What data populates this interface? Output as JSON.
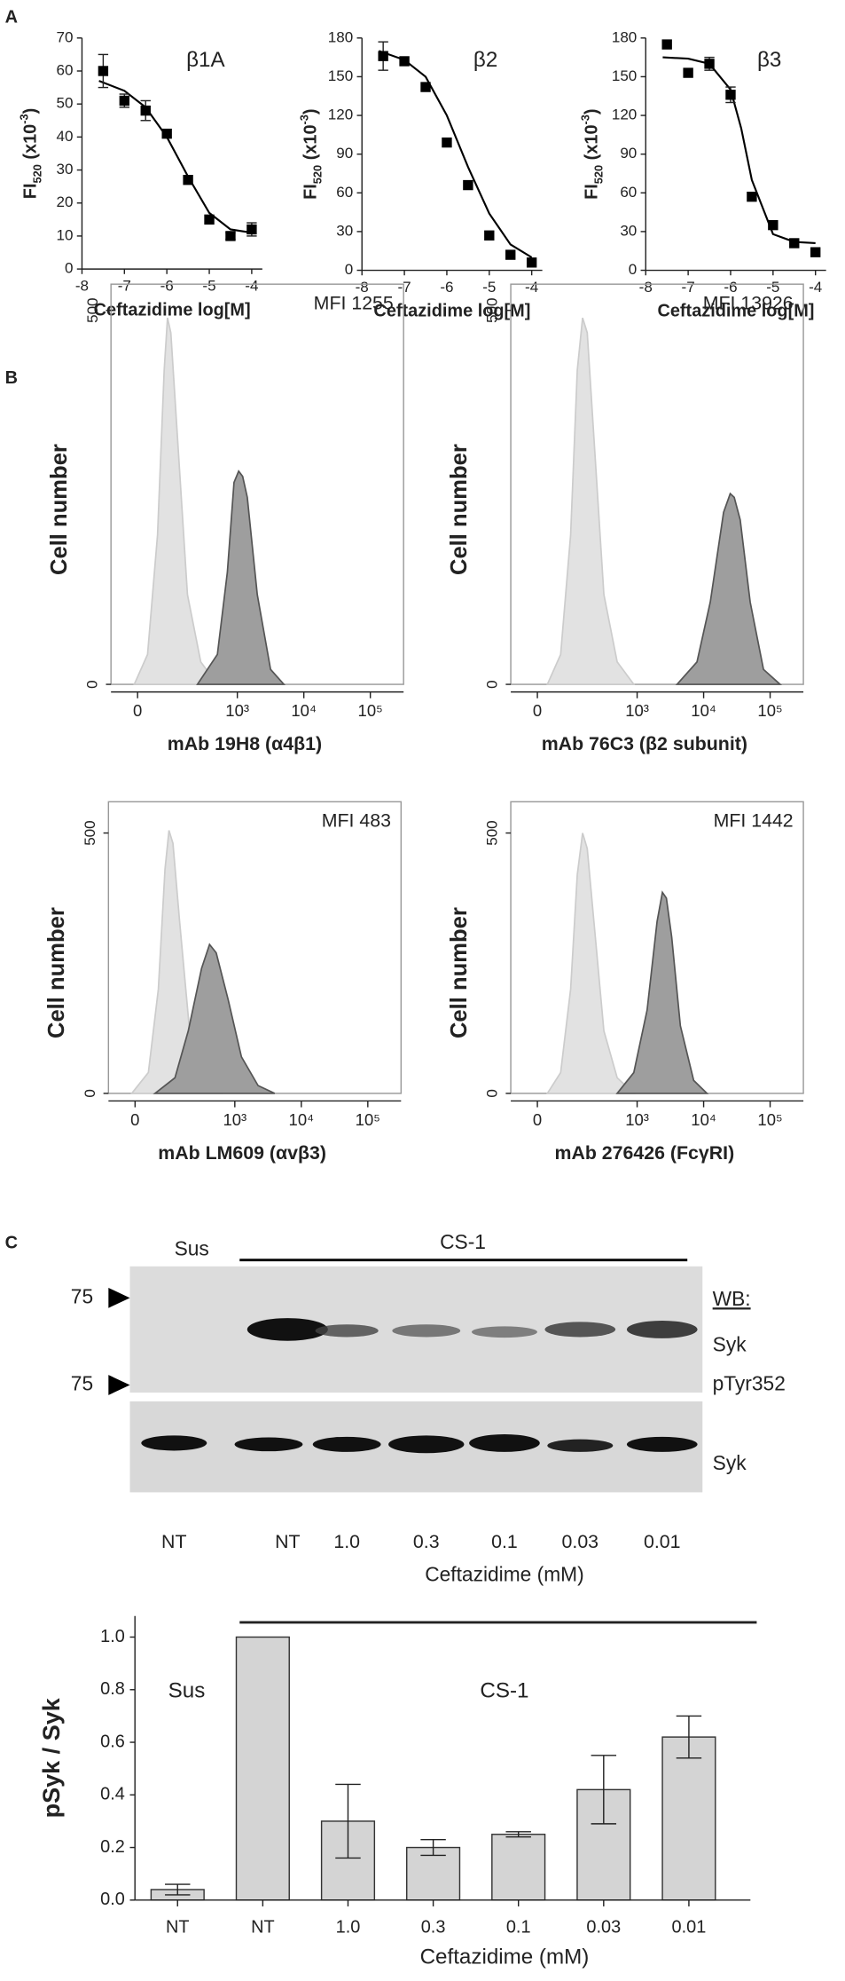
{
  "panel_labels": [
    "A",
    "B",
    "C"
  ],
  "chart_data": [
    {
      "type": "scatter",
      "title": "β1A",
      "x_label": "Ceftazidime log[M]",
      "y_label": {
        "main": "FI",
        "sub": "520",
        "open": " (x10",
        "sup": "-3",
        "close": ")"
      },
      "x": [
        -7.5,
        -7,
        -6.5,
        -6,
        -5.5,
        -5,
        -4.5,
        -4
      ],
      "values": [
        60,
        51,
        48,
        41,
        27,
        15,
        10,
        12
      ],
      "errors": [
        5,
        2,
        3,
        0,
        0,
        0,
        1,
        2
      ],
      "fit": {
        "x": [
          -7.6,
          -7,
          -6.5,
          -6,
          -5.75,
          -5.5,
          -5,
          -4.5,
          -4
        ],
        "values": [
          57,
          54,
          49,
          40,
          34,
          28,
          17,
          12,
          11
        ]
      },
      "color": "#000000",
      "xlim": [
        -8,
        -3.75
      ],
      "xticks": [
        -8,
        -7,
        -6,
        -5,
        -4
      ],
      "ylim": [
        0,
        70
      ],
      "yticks": [
        0,
        10,
        20,
        30,
        40,
        50,
        60,
        70
      ]
    },
    {
      "type": "scatter",
      "title": "β2",
      "x_label": "Ceftazidime log[M]",
      "y_label": {
        "main": "FI",
        "sub": "520",
        "open": " (x10",
        "sup": "-3",
        "close": ")"
      },
      "x": [
        -7.5,
        -7,
        -6.5,
        -6,
        -5.5,
        -5,
        -4.5,
        -4
      ],
      "values": [
        166,
        162,
        142,
        99,
        66,
        27,
        12,
        6
      ],
      "errors": [
        11,
        0,
        0,
        0,
        0,
        0,
        0,
        0
      ],
      "fit": {
        "x": [
          -7.6,
          -7,
          -6.5,
          -6,
          -5.75,
          -5.5,
          -5,
          -4.5,
          -4
        ],
        "values": [
          170,
          163,
          150,
          120,
          100,
          80,
          44,
          20,
          10
        ]
      },
      "color": "#000000",
      "xlim": [
        -8,
        -3.75
      ],
      "xticks": [
        -8,
        -7,
        -6,
        -5,
        -4
      ],
      "ylim": [
        0,
        180
      ],
      "yticks": [
        0,
        30,
        60,
        90,
        120,
        150,
        180
      ]
    },
    {
      "type": "scatter",
      "title": "β3",
      "x_label": "Ceftazidime log[M]",
      "y_label": {
        "main": "FI",
        "sub": "520",
        "open": " (x10",
        "sup": "-3",
        "close": ")"
      },
      "x": [
        -7.5,
        -7,
        -6.5,
        -6,
        -5.5,
        -5,
        -4.5,
        -4
      ],
      "values": [
        175,
        153,
        160,
        136,
        57,
        35,
        21,
        14
      ],
      "errors": [
        0,
        0,
        5,
        6,
        0,
        0,
        0,
        0
      ],
      "fit": {
        "x": [
          -7.6,
          -7,
          -6.5,
          -6,
          -5.75,
          -5.5,
          -5,
          -4.5,
          -4
        ],
        "values": [
          165,
          164,
          160,
          140,
          110,
          70,
          28,
          22,
          21
        ]
      },
      "color": "#000000",
      "xlim": [
        -8,
        -3.75
      ],
      "xticks": [
        -8,
        -7,
        -6,
        -5,
        -4
      ],
      "ylim": [
        0,
        180
      ],
      "yticks": [
        0,
        30,
        60,
        90,
        120,
        150,
        180
      ]
    },
    {
      "type": "area",
      "annotation": "MFI 1255",
      "x_label": "mAb 19H8 (α4β1)",
      "y_label": "Cell number",
      "xlim": [
        1.1,
        5.5
      ],
      "xticks": [
        {
          "value": 1.5,
          "label": "0"
        },
        {
          "value": 3,
          "label": "10³"
        },
        {
          "value": 4,
          "label": "10⁴"
        },
        {
          "value": 5,
          "label": "10⁵"
        }
      ],
      "ylim": [
        0,
        535
      ],
      "yticks": [
        0,
        500
      ],
      "series": [
        {
          "color": "#e2e2e2",
          "x": [
            1.45,
            1.65,
            1.8,
            1.9,
            1.95,
            2.0,
            2.1,
            2.25,
            2.45,
            2.7
          ],
          "values": [
            0,
            40,
            200,
            420,
            490,
            470,
            330,
            120,
            30,
            0
          ]
        },
        {
          "color": "#9e9e9e",
          "x": [
            2.4,
            2.7,
            2.85,
            2.95,
            3.02,
            3.08,
            3.15,
            3.3,
            3.5,
            3.7
          ],
          "values": [
            0,
            40,
            150,
            270,
            285,
            278,
            250,
            120,
            20,
            0
          ]
        }
      ]
    },
    {
      "type": "area",
      "annotation": "MFI 13926",
      "x_label": "mAb 76C3 (β2 subunit)",
      "y_label": "Cell number",
      "xlim": [
        1.1,
        5.5
      ],
      "xticks": [
        {
          "value": 1.5,
          "label": "0"
        },
        {
          "value": 3,
          "label": "10³"
        },
        {
          "value": 4,
          "label": "10⁴"
        },
        {
          "value": 5,
          "label": "10⁵"
        }
      ],
      "ylim": [
        0,
        535
      ],
      "yticks": [
        0,
        500
      ],
      "series": [
        {
          "color": "#e2e2e2",
          "x": [
            1.65,
            1.85,
            2.0,
            2.1,
            2.18,
            2.25,
            2.35,
            2.5,
            2.7,
            2.95
          ],
          "values": [
            0,
            40,
            200,
            420,
            490,
            470,
            330,
            120,
            30,
            0
          ]
        },
        {
          "color": "#9e9e9e",
          "x": [
            3.6,
            3.9,
            4.1,
            4.3,
            4.4,
            4.46,
            4.55,
            4.7,
            4.9,
            5.15
          ],
          "values": [
            0,
            30,
            110,
            230,
            255,
            250,
            220,
            110,
            20,
            0
          ]
        }
      ]
    },
    {
      "type": "area",
      "annotation": "MFI 483",
      "x_label": "mAb LM609 (αvβ3)",
      "y_label": "Cell number",
      "xlim": [
        1.1,
        5.5
      ],
      "xticks": [
        {
          "value": 1.5,
          "label": "0"
        },
        {
          "value": 3,
          "label": "10³"
        },
        {
          "value": 4,
          "label": "10⁴"
        },
        {
          "value": 5,
          "label": "10⁵"
        }
      ],
      "ylim": [
        0,
        560
      ],
      "yticks": [
        0,
        500
      ],
      "series": [
        {
          "color": "#e2e2e2",
          "x": [
            1.45,
            1.7,
            1.85,
            1.95,
            2.01,
            2.07,
            2.17,
            2.32,
            2.55,
            2.8
          ],
          "values": [
            0,
            40,
            200,
            430,
            505,
            480,
            330,
            120,
            30,
            0
          ]
        },
        {
          "color": "#9e9e9e",
          "x": [
            1.8,
            2.1,
            2.3,
            2.5,
            2.62,
            2.72,
            2.9,
            3.1,
            3.35,
            3.6
          ],
          "values": [
            0,
            30,
            120,
            240,
            286,
            270,
            180,
            70,
            15,
            0
          ]
        }
      ]
    },
    {
      "type": "area",
      "annotation": "MFI 1442",
      "x_label": "mAb 276426 (FcγRI)",
      "y_label": "Cell number",
      "xlim": [
        1.1,
        5.5
      ],
      "xticks": [
        {
          "value": 1.5,
          "label": "0"
        },
        {
          "value": 3,
          "label": "10³"
        },
        {
          "value": 4,
          "label": "10⁴"
        },
        {
          "value": 5,
          "label": "10⁵"
        }
      ],
      "ylim": [
        0,
        560
      ],
      "yticks": [
        0,
        500
      ],
      "series": [
        {
          "color": "#e2e2e2",
          "x": [
            1.65,
            1.85,
            2.0,
            2.1,
            2.18,
            2.25,
            2.35,
            2.5,
            2.7,
            2.95
          ],
          "values": [
            0,
            40,
            200,
            420,
            500,
            470,
            330,
            120,
            30,
            0
          ]
        },
        {
          "color": "#9e9e9e",
          "x": [
            2.7,
            2.95,
            3.15,
            3.3,
            3.38,
            3.44,
            3.52,
            3.65,
            3.85,
            4.05
          ],
          "values": [
            0,
            40,
            160,
            330,
            386,
            375,
            300,
            130,
            25,
            0
          ]
        }
      ]
    },
    {
      "type": "bar",
      "y_label": "pSyk / Syk",
      "x_label": "Ceftazidime (mM)",
      "annotations": [
        "Sus",
        "CS-1"
      ],
      "categories": [
        "NT",
        "NT",
        "1.0",
        "0.3",
        "0.1",
        "0.03",
        "0.01"
      ],
      "values": [
        0.04,
        1.0,
        0.3,
        0.2,
        0.25,
        0.42,
        0.62
      ],
      "errors": [
        0.02,
        null,
        0.14,
        0.03,
        0.01,
        0.13,
        0.08
      ],
      "color": "#d4d4d4",
      "ylim": [
        0,
        1.08
      ],
      "yticks": [
        {
          "value": 0,
          "label": "0.0"
        },
        0.2,
        0.4,
        0.6,
        0.8,
        {
          "value": 1,
          "label": "1.0"
        }
      ]
    }
  ],
  "blot": {
    "sus": "Sus",
    "treatment": "CS-1",
    "markers": [
      "75",
      "75"
    ],
    "wb_label": "WB:",
    "rows": [
      [
        "Syk",
        "pTyr352"
      ],
      [
        "Syk"
      ]
    ],
    "lanes": [
      "NT",
      "NT",
      "1.0",
      "0.3",
      "0.1",
      "0.03",
      "0.01"
    ],
    "x_label": "Ceftazidime (mM)"
  }
}
